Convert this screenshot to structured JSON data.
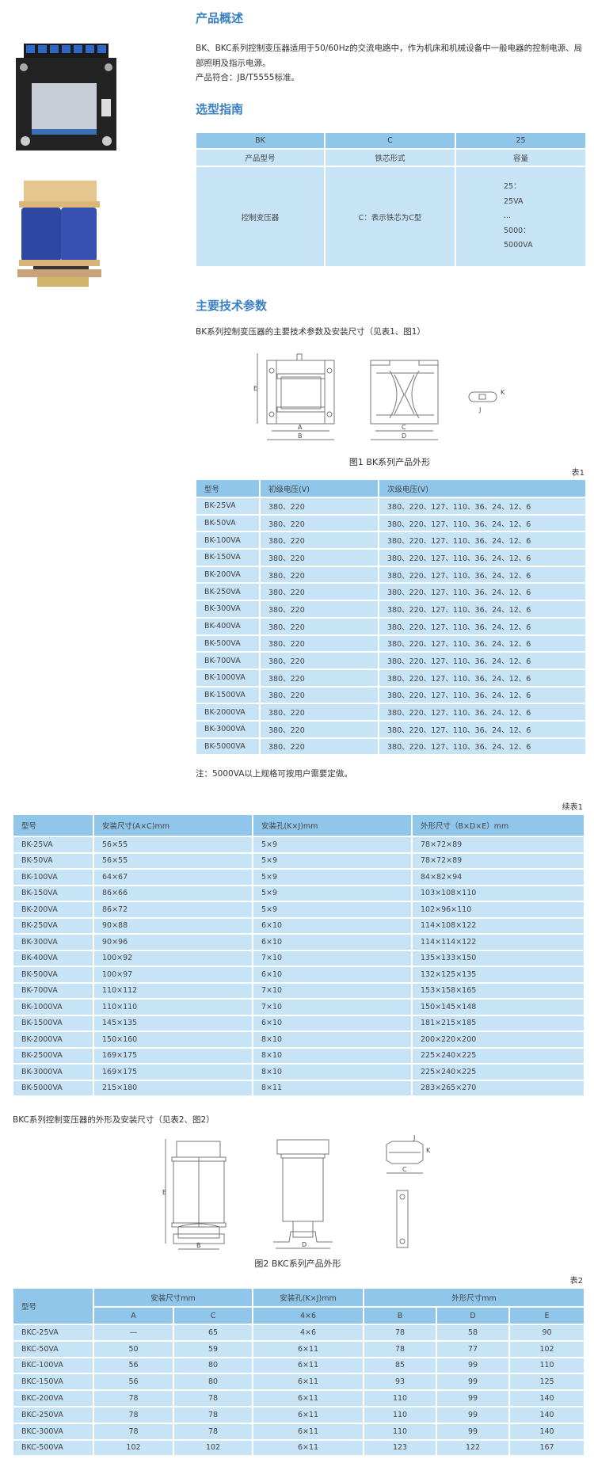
{
  "overview": {
    "title": "产品概述",
    "paragraph1": "BK、BKC系列控制变压器适用于50/60Hz的交流电路中，作为机床和机械设备中一般电器的控制电源、局部照明及指示电源。",
    "paragraph2": "产品符合：JB/T5555标准。"
  },
  "guide": {
    "title": "选型指南",
    "codes": [
      "BK",
      "C",
      "25"
    ],
    "labels": [
      "产品型号",
      "铁芯形式",
      "容量"
    ],
    "values": [
      "控制变压器",
      "C：表示铁芯为C型"
    ],
    "capacity_lines": [
      "25：",
      "25VA",
      "...",
      "5000：",
      "5000VA"
    ]
  },
  "params": {
    "title": "主要技术参数",
    "subtitle": "BK系列控制变压器的主要技术参数及安装尺寸（见表1、图1）",
    "figure_caption": "图1 BK系列产品外形",
    "figure_labels": {
      "A": "A",
      "B": "B",
      "C": "C",
      "D": "D",
      "E": "E",
      "K": "K",
      "J": "J"
    }
  },
  "table1": {
    "label": "表1",
    "headers": [
      "型号",
      "初级电压(V)",
      "次级电压(V)"
    ],
    "rows": [
      [
        "BK-25VA",
        "380、220",
        "380、220、127、110、36、24、12、6"
      ],
      [
        "BK-50VA",
        "380、220",
        "380、220、127、110、36、24、12、6"
      ],
      [
        "BK-100VA",
        "380、220",
        "380、220、127、110、36、24、12、6"
      ],
      [
        "BK-150VA",
        "380、220",
        "380、220、127、110、36、24、12、6"
      ],
      [
        "BK-200VA",
        "380、220",
        "380、220、127、110、36、24、12、6"
      ],
      [
        "BK-250VA",
        "380、220",
        "380、220、127、110、36、24、12、6"
      ],
      [
        "BK-300VA",
        "380、220",
        "380、220、127、110、36、24、12、6"
      ],
      [
        "BK-400VA",
        "380、220",
        "380、220、127、110、36、24、12、6"
      ],
      [
        "BK-500VA",
        "380、220",
        "380、220、127、110、36、24、12、6"
      ],
      [
        "BK-700VA",
        "380、220",
        "380、220、127、110、36、24、12、6"
      ],
      [
        "BK-1000VA",
        "380、220",
        "380、220、127、110、36、24、12、6"
      ],
      [
        "BK-1500VA",
        "380、220",
        "380、220、127、110、36、24、12、6"
      ],
      [
        "BK-2000VA",
        "380、220",
        "380、220、127、110、36、24、12、6"
      ],
      [
        "BK-3000VA",
        "380、220",
        "380、220、127、110、36、24、12、6"
      ],
      [
        "BK-5000VA",
        "380、220",
        "380、220、127、110、36、24、12、6"
      ]
    ],
    "note": "注：5000VA以上规格可按用户需要定做。"
  },
  "table1_cont": {
    "label": "续表1",
    "headers": [
      "型号",
      "安装尺寸(A×C)mm",
      "安装孔(K×J)mm",
      "外形尺寸（B×D×E）mm"
    ],
    "rows": [
      [
        "BK-25VA",
        "56×55",
        "5×9",
        "78×72×89"
      ],
      [
        "BK-50VA",
        "56×55",
        "5×9",
        "78×72×89"
      ],
      [
        "BK-100VA",
        "64×67",
        "5×9",
        "84×82×94"
      ],
      [
        "BK-150VA",
        "86×66",
        "5×9",
        "103×108×110"
      ],
      [
        "BK-200VA",
        "86×72",
        "5×9",
        "102×96×110"
      ],
      [
        "BK-250VA",
        "90×88",
        "6×10",
        "114×108×122"
      ],
      [
        "BK-300VA",
        "90×96",
        "6×10",
        "114×114×122"
      ],
      [
        "BK-400VA",
        "100×92",
        "7×10",
        "135×133×150"
      ],
      [
        "BK-500VA",
        "100×97",
        "6×10",
        "132×125×135"
      ],
      [
        "BK-700VA",
        "110×112",
        "7×10",
        "153×158×165"
      ],
      [
        "BK-1000VA",
        "110×110",
        "7×10",
        "150×145×148"
      ],
      [
        "BK-1500VA",
        "145×135",
        "6×10",
        "181×215×185"
      ],
      [
        "BK-2000VA",
        "150×160",
        "8×10",
        "200×220×200"
      ],
      [
        "BK-2500VA",
        "169×175",
        "8×10",
        "225×240×225"
      ],
      [
        "BK-3000VA",
        "169×175",
        "8×10",
        "225×240×225"
      ],
      [
        "BK-5000VA",
        "215×180",
        "8×11",
        "283×265×270"
      ]
    ]
  },
  "bkc": {
    "subtitle": "BKC系列控制变压器的外形及安装尺寸（见表2、图2）",
    "figure_caption": "图2 BKC系列产品外形"
  },
  "table2": {
    "label": "表2",
    "group_headers": [
      "型号",
      "安装尺寸mm",
      "安装孔(K×J)mm",
      "外形尺寸mm"
    ],
    "sub_headers": [
      "A",
      "C",
      "4×6",
      "B",
      "D",
      "E"
    ],
    "rows": [
      [
        "BKC-25VA",
        "—",
        "65",
        "4×6",
        "78",
        "58",
        "90"
      ],
      [
        "BKC-50VA",
        "50",
        "59",
        "6×11",
        "78",
        "77",
        "102"
      ],
      [
        "BKC-100VA",
        "56",
        "80",
        "6×11",
        "85",
        "99",
        "110"
      ],
      [
        "BKC-150VA",
        "56",
        "80",
        "6×11",
        "93",
        "99",
        "125"
      ],
      [
        "BKC-200VA",
        "78",
        "78",
        "6×11",
        "110",
        "99",
        "140"
      ],
      [
        "BKC-250VA",
        "78",
        "78",
        "6×11",
        "110",
        "99",
        "140"
      ],
      [
        "BKC-300VA",
        "78",
        "78",
        "6×11",
        "110",
        "99",
        "140"
      ],
      [
        "BKC-500VA",
        "102",
        "102",
        "6×11",
        "123",
        "122",
        "167"
      ]
    ]
  },
  "colors": {
    "heading": "#3a7fc4",
    "table_header": "#8fc6ea",
    "table_body": "#c7e3f6"
  }
}
